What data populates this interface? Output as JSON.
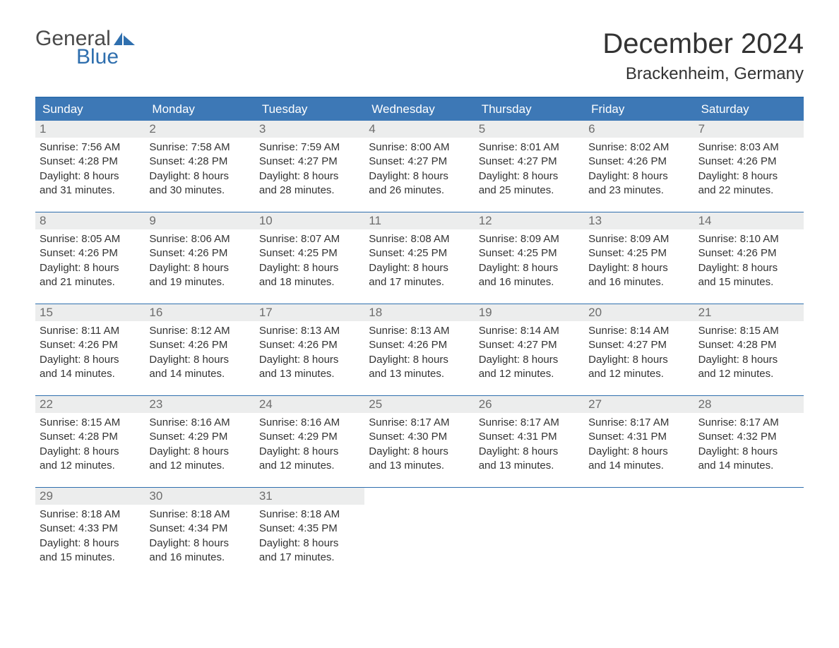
{
  "logo": {
    "word1": "General",
    "word2": "Blue",
    "color1": "#4a4a4a",
    "color2": "#2f6fae"
  },
  "title": "December 2024",
  "location": "Brackenheim, Germany",
  "colors": {
    "header_bg": "#3d78b6",
    "header_text": "#ffffff",
    "border": "#2f6fae",
    "daynum_bg": "#eceded",
    "daynum_text": "#6d6d6d",
    "body_text": "#333333",
    "background": "#ffffff"
  },
  "weekdays": [
    "Sunday",
    "Monday",
    "Tuesday",
    "Wednesday",
    "Thursday",
    "Friday",
    "Saturday"
  ],
  "layout": {
    "columns": 7,
    "rows": 5,
    "title_fontsize": 40,
    "location_fontsize": 24,
    "weekday_fontsize": 17,
    "daynum_fontsize": 17,
    "body_fontsize": 15
  },
  "weeks": [
    [
      {
        "n": "1",
        "sunrise": "7:56 AM",
        "sunset": "4:28 PM",
        "dl1": "Daylight: 8 hours",
        "dl2": "and 31 minutes."
      },
      {
        "n": "2",
        "sunrise": "7:58 AM",
        "sunset": "4:28 PM",
        "dl1": "Daylight: 8 hours",
        "dl2": "and 30 minutes."
      },
      {
        "n": "3",
        "sunrise": "7:59 AM",
        "sunset": "4:27 PM",
        "dl1": "Daylight: 8 hours",
        "dl2": "and 28 minutes."
      },
      {
        "n": "4",
        "sunrise": "8:00 AM",
        "sunset": "4:27 PM",
        "dl1": "Daylight: 8 hours",
        "dl2": "and 26 minutes."
      },
      {
        "n": "5",
        "sunrise": "8:01 AM",
        "sunset": "4:27 PM",
        "dl1": "Daylight: 8 hours",
        "dl2": "and 25 minutes."
      },
      {
        "n": "6",
        "sunrise": "8:02 AM",
        "sunset": "4:26 PM",
        "dl1": "Daylight: 8 hours",
        "dl2": "and 23 minutes."
      },
      {
        "n": "7",
        "sunrise": "8:03 AM",
        "sunset": "4:26 PM",
        "dl1": "Daylight: 8 hours",
        "dl2": "and 22 minutes."
      }
    ],
    [
      {
        "n": "8",
        "sunrise": "8:05 AM",
        "sunset": "4:26 PM",
        "dl1": "Daylight: 8 hours",
        "dl2": "and 21 minutes."
      },
      {
        "n": "9",
        "sunrise": "8:06 AM",
        "sunset": "4:26 PM",
        "dl1": "Daylight: 8 hours",
        "dl2": "and 19 minutes."
      },
      {
        "n": "10",
        "sunrise": "8:07 AM",
        "sunset": "4:25 PM",
        "dl1": "Daylight: 8 hours",
        "dl2": "and 18 minutes."
      },
      {
        "n": "11",
        "sunrise": "8:08 AM",
        "sunset": "4:25 PM",
        "dl1": "Daylight: 8 hours",
        "dl2": "and 17 minutes."
      },
      {
        "n": "12",
        "sunrise": "8:09 AM",
        "sunset": "4:25 PM",
        "dl1": "Daylight: 8 hours",
        "dl2": "and 16 minutes."
      },
      {
        "n": "13",
        "sunrise": "8:09 AM",
        "sunset": "4:25 PM",
        "dl1": "Daylight: 8 hours",
        "dl2": "and 16 minutes."
      },
      {
        "n": "14",
        "sunrise": "8:10 AM",
        "sunset": "4:26 PM",
        "dl1": "Daylight: 8 hours",
        "dl2": "and 15 minutes."
      }
    ],
    [
      {
        "n": "15",
        "sunrise": "8:11 AM",
        "sunset": "4:26 PM",
        "dl1": "Daylight: 8 hours",
        "dl2": "and 14 minutes."
      },
      {
        "n": "16",
        "sunrise": "8:12 AM",
        "sunset": "4:26 PM",
        "dl1": "Daylight: 8 hours",
        "dl2": "and 14 minutes."
      },
      {
        "n": "17",
        "sunrise": "8:13 AM",
        "sunset": "4:26 PM",
        "dl1": "Daylight: 8 hours",
        "dl2": "and 13 minutes."
      },
      {
        "n": "18",
        "sunrise": "8:13 AM",
        "sunset": "4:26 PM",
        "dl1": "Daylight: 8 hours",
        "dl2": "and 13 minutes."
      },
      {
        "n": "19",
        "sunrise": "8:14 AM",
        "sunset": "4:27 PM",
        "dl1": "Daylight: 8 hours",
        "dl2": "and 12 minutes."
      },
      {
        "n": "20",
        "sunrise": "8:14 AM",
        "sunset": "4:27 PM",
        "dl1": "Daylight: 8 hours",
        "dl2": "and 12 minutes."
      },
      {
        "n": "21",
        "sunrise": "8:15 AM",
        "sunset": "4:28 PM",
        "dl1": "Daylight: 8 hours",
        "dl2": "and 12 minutes."
      }
    ],
    [
      {
        "n": "22",
        "sunrise": "8:15 AM",
        "sunset": "4:28 PM",
        "dl1": "Daylight: 8 hours",
        "dl2": "and 12 minutes."
      },
      {
        "n": "23",
        "sunrise": "8:16 AM",
        "sunset": "4:29 PM",
        "dl1": "Daylight: 8 hours",
        "dl2": "and 12 minutes."
      },
      {
        "n": "24",
        "sunrise": "8:16 AM",
        "sunset": "4:29 PM",
        "dl1": "Daylight: 8 hours",
        "dl2": "and 12 minutes."
      },
      {
        "n": "25",
        "sunrise": "8:17 AM",
        "sunset": "4:30 PM",
        "dl1": "Daylight: 8 hours",
        "dl2": "and 13 minutes."
      },
      {
        "n": "26",
        "sunrise": "8:17 AM",
        "sunset": "4:31 PM",
        "dl1": "Daylight: 8 hours",
        "dl2": "and 13 minutes."
      },
      {
        "n": "27",
        "sunrise": "8:17 AM",
        "sunset": "4:31 PM",
        "dl1": "Daylight: 8 hours",
        "dl2": "and 14 minutes."
      },
      {
        "n": "28",
        "sunrise": "8:17 AM",
        "sunset": "4:32 PM",
        "dl1": "Daylight: 8 hours",
        "dl2": "and 14 minutes."
      }
    ],
    [
      {
        "n": "29",
        "sunrise": "8:18 AM",
        "sunset": "4:33 PM",
        "dl1": "Daylight: 8 hours",
        "dl2": "and 15 minutes."
      },
      {
        "n": "30",
        "sunrise": "8:18 AM",
        "sunset": "4:34 PM",
        "dl1": "Daylight: 8 hours",
        "dl2": "and 16 minutes."
      },
      {
        "n": "31",
        "sunrise": "8:18 AM",
        "sunset": "4:35 PM",
        "dl1": "Daylight: 8 hours",
        "dl2": "and 17 minutes."
      },
      null,
      null,
      null,
      null
    ]
  ],
  "labels": {
    "sunrise": "Sunrise: ",
    "sunset": "Sunset: "
  }
}
